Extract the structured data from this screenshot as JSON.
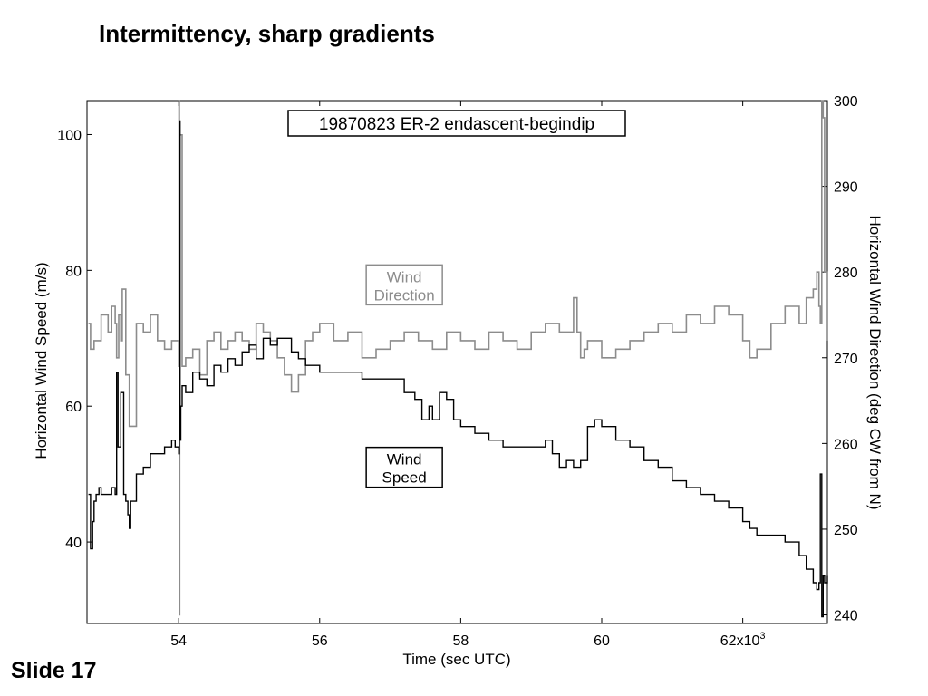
{
  "slide": {
    "title": "Intermittency, sharp gradients",
    "number_label": "Slide 17"
  },
  "chart_data": {
    "type": "line",
    "title": "19870823 ER-2 endascent-begindip",
    "xlabel": "Time  (sec UTC)",
    "ylabel_left": "Horizontal Wind Speed  (m/s)",
    "ylabel_right": "Horizontal Wind Direction  (deg CW from N)",
    "x_unit_note": "x10³ seconds",
    "xlim": [
      52.7,
      63.2
    ],
    "x_ticks": [
      54,
      56,
      58,
      60,
      62
    ],
    "x_tick_labels": [
      "54",
      "56",
      "58",
      "60",
      "62x10"
    ],
    "x_tick_superscript": "3",
    "ylim_left": [
      28,
      105
    ],
    "y_ticks_left": [
      40,
      60,
      80,
      100
    ],
    "ylim_right": [
      239,
      300
    ],
    "y_ticks_right": [
      240,
      250,
      260,
      270,
      280,
      290,
      300
    ],
    "grid": false,
    "series": [
      {
        "name": "Wind\nSpeed",
        "axis": "left",
        "color": "#000000",
        "x": [
          52.72,
          52.75,
          52.78,
          52.8,
          52.83,
          52.87,
          52.9,
          53.0,
          53.05,
          53.1,
          53.12,
          53.14,
          53.18,
          53.22,
          53.25,
          53.28,
          53.3,
          53.32,
          53.4,
          53.5,
          53.6,
          53.7,
          53.8,
          53.9,
          53.95,
          54.0,
          54.01,
          54.02,
          54.03,
          54.05,
          54.1,
          54.2,
          54.3,
          54.4,
          54.5,
          54.6,
          54.7,
          54.8,
          54.9,
          55.0,
          55.1,
          55.2,
          55.3,
          55.4,
          55.5,
          55.6,
          55.7,
          55.8,
          55.9,
          56.0,
          56.2,
          56.4,
          56.6,
          56.8,
          57.0,
          57.2,
          57.35,
          57.45,
          57.55,
          57.6,
          57.7,
          57.8,
          57.9,
          58.0,
          58.2,
          58.4,
          58.6,
          58.8,
          59.0,
          59.2,
          59.3,
          59.4,
          59.5,
          59.6,
          59.7,
          59.8,
          59.9,
          60.0,
          60.2,
          60.4,
          60.6,
          60.8,
          61.0,
          61.2,
          61.4,
          61.6,
          61.8,
          62.0,
          62.1,
          62.2,
          62.4,
          62.6,
          62.8,
          62.9,
          63.0,
          63.05,
          63.08,
          63.1,
          63.12,
          63.14,
          63.16,
          63.2
        ],
        "values": [
          47,
          39,
          43,
          46,
          47,
          48,
          47,
          47,
          48,
          47,
          65,
          54,
          62,
          47,
          46,
          44,
          42,
          46,
          50,
          51,
          53,
          53,
          54,
          55,
          54,
          53,
          102,
          55,
          60,
          63,
          62,
          65,
          64,
          63,
          66,
          65,
          67,
          66,
          68,
          69,
          67,
          70,
          69,
          70,
          70,
          68,
          67,
          66,
          66,
          65,
          65,
          65,
          64,
          64,
          64,
          62,
          61,
          58,
          60,
          58,
          62,
          61,
          58,
          57,
          56,
          55,
          54,
          54,
          54,
          55,
          53,
          51,
          52,
          51,
          52,
          57,
          58,
          57,
          55,
          54,
          52,
          51,
          49,
          48,
          47,
          46,
          45,
          43,
          42,
          41,
          41,
          40,
          38,
          36,
          34,
          33,
          34,
          50,
          29,
          35,
          34,
          35
        ]
      },
      {
        "name": "Wind\nDirection",
        "axis": "right",
        "color": "#8c8c8c",
        "x": [
          52.72,
          52.75,
          52.8,
          52.9,
          53.0,
          53.05,
          53.1,
          53.12,
          53.15,
          53.18,
          53.2,
          53.25,
          53.3,
          53.4,
          53.5,
          53.6,
          53.7,
          53.8,
          53.9,
          54.0,
          54.005,
          54.01,
          54.015,
          54.05,
          54.1,
          54.2,
          54.3,
          54.4,
          54.5,
          54.6,
          54.7,
          54.8,
          54.9,
          55.0,
          55.1,
          55.2,
          55.3,
          55.4,
          55.5,
          55.6,
          55.7,
          55.8,
          55.9,
          56.0,
          56.2,
          56.4,
          56.6,
          56.8,
          57.0,
          57.2,
          57.4,
          57.6,
          57.8,
          58.0,
          58.2,
          58.4,
          58.6,
          58.8,
          59.0,
          59.2,
          59.4,
          59.6,
          59.65,
          59.7,
          59.75,
          59.8,
          60.0,
          60.2,
          60.4,
          60.6,
          60.8,
          61.0,
          61.2,
          61.4,
          61.6,
          61.8,
          62.0,
          62.1,
          62.2,
          62.4,
          62.6,
          62.8,
          62.9,
          63.0,
          63.05,
          63.08,
          63.1,
          63.12,
          63.14,
          63.16,
          63.2
        ],
        "values": [
          274,
          271,
          272,
          275,
          273,
          276,
          274,
          270,
          275,
          272,
          278,
          268,
          262,
          274,
          273,
          275,
          272,
          271,
          272,
          269,
          300,
          240,
          296,
          269,
          270,
          271,
          268,
          272,
          273,
          271,
          272,
          273,
          272,
          271,
          274,
          273,
          272,
          270,
          268,
          266,
          268,
          272,
          273,
          274,
          272,
          273,
          270,
          271,
          272,
          273,
          272,
          271,
          273,
          272,
          271,
          273,
          272,
          271,
          273,
          274,
          273,
          277,
          273,
          270,
          271,
          272,
          270,
          271,
          272,
          273,
          274,
          273,
          275,
          274,
          276,
          275,
          272,
          270,
          271,
          274,
          276,
          274,
          277,
          278,
          280,
          276,
          274,
          300,
          298,
          280,
          272
        ]
      }
    ],
    "legend_boxes": [
      {
        "text": "Wind\nDirection",
        "x": 57.2,
        "y_right": 278.5,
        "color": "#8c8c8c"
      },
      {
        "text": "Wind\nSpeed",
        "x": 57.2,
        "y_left": 51,
        "color": "#000000"
      }
    ]
  }
}
